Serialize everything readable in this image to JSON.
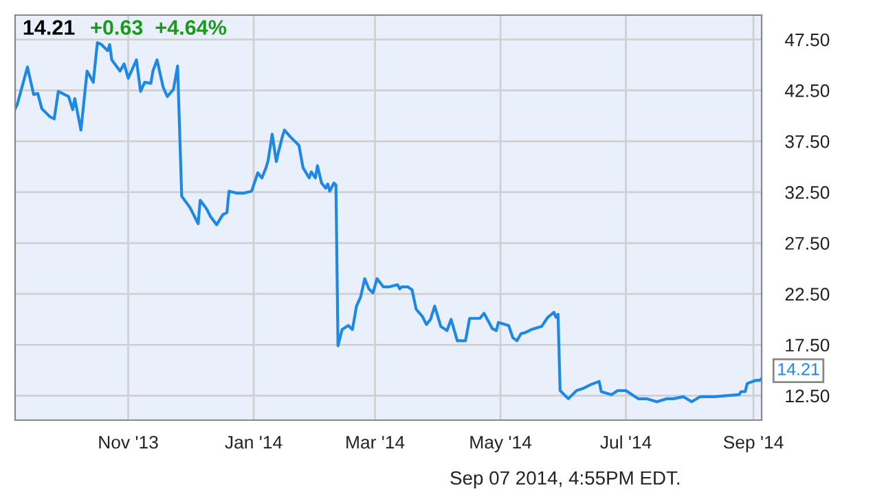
{
  "chart_data": {
    "type": "line",
    "title": "14.21",
    "subtitle": "+0.63  +4.64%",
    "x": [
      "2013-09-07",
      "2013-09-08",
      "2013-09-13",
      "2013-09-16",
      "2013-09-18",
      "2013-09-20",
      "2013-09-24",
      "2013-09-26",
      "2013-09-28",
      "2013-10-03",
      "2013-10-05",
      "2013-10-06",
      "2013-10-09",
      "2013-10-12",
      "2013-10-15",
      "2013-10-17",
      "2013-10-19",
      "2013-10-22",
      "2013-10-23",
      "2013-10-24",
      "2013-10-28",
      "2013-10-30",
      "2013-11-01",
      "2013-11-05",
      "2013-11-07",
      "2013-11-09",
      "2013-11-12",
      "2013-11-13",
      "2013-11-15",
      "2013-11-18",
      "2013-11-20",
      "2013-11-23",
      "2013-11-25",
      "2013-11-27",
      "2013-12-01",
      "2013-12-04",
      "2013-12-05",
      "2013-12-06",
      "2013-12-09",
      "2013-12-11",
      "2013-12-14",
      "2013-12-17",
      "2013-12-19",
      "2013-12-20",
      "2013-12-24",
      "2013-12-27",
      "2013-12-31",
      "2014-01-03",
      "2014-01-05",
      "2014-01-07",
      "2014-01-08",
      "2014-01-10",
      "2014-01-12",
      "2014-01-13",
      "2014-01-15",
      "2014-01-16",
      "2014-01-19",
      "2014-01-23",
      "2014-01-25",
      "2014-01-28",
      "2014-01-29",
      "2014-01-31",
      "2014-02-01",
      "2014-02-03",
      "2014-02-05",
      "2014-02-06",
      "2014-02-07",
      "2014-02-09",
      "2014-02-10",
      "2014-02-11",
      "2014-02-13",
      "2014-02-16",
      "2014-02-18",
      "2014-02-20",
      "2014-02-22",
      "2014-02-24",
      "2014-02-26",
      "2014-02-28",
      "2014-03-02",
      "2014-03-05",
      "2014-03-08",
      "2014-03-12",
      "2014-03-13",
      "2014-03-14",
      "2014-03-17",
      "2014-03-19",
      "2014-03-21",
      "2014-03-24",
      "2014-03-26",
      "2014-03-28",
      "2014-03-30",
      "2014-04-02",
      "2014-04-05",
      "2014-04-07",
      "2014-04-10",
      "2014-04-14",
      "2014-04-16",
      "2014-04-21",
      "2014-04-23",
      "2014-04-27",
      "2014-04-29",
      "2014-04-30",
      "2014-05-05",
      "2014-05-07",
      "2014-05-09",
      "2014-05-11",
      "2014-05-13",
      "2014-05-16",
      "2014-05-21",
      "2014-05-24",
      "2014-05-27",
      "2014-05-28",
      "2014-05-29",
      "2014-05-30",
      "2014-06-03",
      "2014-06-07",
      "2014-06-10",
      "2014-06-14",
      "2014-06-18",
      "2014-06-19",
      "2014-06-24",
      "2014-06-27",
      "2014-07-01",
      "2014-07-04",
      "2014-07-07",
      "2014-07-11",
      "2014-07-16",
      "2014-07-21",
      "2014-07-24",
      "2014-07-29",
      "2014-08-02",
      "2014-08-06",
      "2014-08-13",
      "2014-08-25",
      "2014-08-26",
      "2014-08-28",
      "2014-08-29",
      "2014-09-02",
      "2014-09-04",
      "2014-09-05"
    ],
    "series": [
      {
        "color": "#1e88e5",
        "values": [
          40.7,
          41.1,
          44.8,
          42.1,
          42.2,
          40.7,
          39.9,
          39.7,
          42.4,
          41.9,
          40.6,
          41.7,
          38.6,
          44.4,
          43.3,
          47.2,
          47.0,
          46.4,
          47.0,
          45.5,
          44.4,
          45.1,
          43.7,
          45.5,
          42.4,
          43.3,
          43.2,
          44.4,
          45.5,
          42.8,
          41.9,
          42.6,
          44.9,
          32.1,
          31.0,
          29.8,
          29.4,
          31.7,
          30.9,
          30.1,
          29.3,
          30.3,
          30.5,
          32.6,
          32.4,
          32.4,
          32.6,
          34.4,
          33.9,
          34.9,
          35.6,
          38.2,
          35.5,
          36.4,
          38.0,
          38.6,
          37.9,
          37.1,
          34.9,
          33.9,
          34.5,
          33.9,
          35.1,
          33.4,
          32.9,
          33.3,
          32.6,
          33.4,
          33.2,
          17.4,
          19.0,
          19.4,
          19.0,
          21.3,
          22.2,
          24.0,
          23.0,
          22.6,
          24.0,
          23.2,
          23.2,
          23.4,
          23.0,
          23.2,
          23.2,
          22.9,
          21.0,
          20.3,
          19.5,
          20.0,
          21.3,
          19.3,
          18.9,
          20.0,
          17.9,
          17.9,
          20.1,
          20.1,
          20.6,
          19.1,
          18.9,
          19.7,
          19.4,
          18.2,
          17.9,
          18.6,
          18.7,
          19.0,
          19.3,
          20.2,
          20.7,
          20.2,
          20.5,
          13.0,
          12.2,
          13.0,
          13.2,
          13.6,
          13.9,
          12.9,
          12.6,
          13.0,
          13.0,
          12.6,
          12.2,
          12.2,
          11.9,
          12.2,
          12.2,
          12.4,
          11.9,
          12.4,
          12.4,
          12.6,
          12.9,
          12.9,
          13.7,
          14.0,
          14.0,
          14.21
        ]
      }
    ],
    "xlim": [
      "2013-09-07",
      "2014-09-05"
    ],
    "ylim": [
      10.1,
      49.9
    ],
    "xticks": [
      {
        "value": "2013-11-01",
        "label": "Nov '13"
      },
      {
        "value": "2014-01-01",
        "label": "Jan '14"
      },
      {
        "value": "2014-03-01",
        "label": "Mar '14"
      },
      {
        "value": "2014-05-01",
        "label": "May '14"
      },
      {
        "value": "2014-07-01",
        "label": "Jul '14"
      },
      {
        "value": "2014-09-01",
        "label": "Sep '14"
      }
    ],
    "yticks": [
      {
        "value": 12.5,
        "label": "12.50"
      },
      {
        "value": 17.5,
        "label": "17.50"
      },
      {
        "value": 22.5,
        "label": "22.50"
      },
      {
        "value": 27.5,
        "label": "27.50"
      },
      {
        "value": 32.5,
        "label": "32.50"
      },
      {
        "value": 37.5,
        "label": "37.50"
      },
      {
        "value": 42.5,
        "label": "42.50"
      },
      {
        "value": 47.5,
        "label": "47.50"
      }
    ],
    "grid": true,
    "marker": "none",
    "line_style": "solid",
    "annotations": [
      {
        "text": "14.21",
        "x": "2014-09-05",
        "y": 14.21
      },
      "Sep 07 2014, 4:55PM EDT."
    ]
  }
}
